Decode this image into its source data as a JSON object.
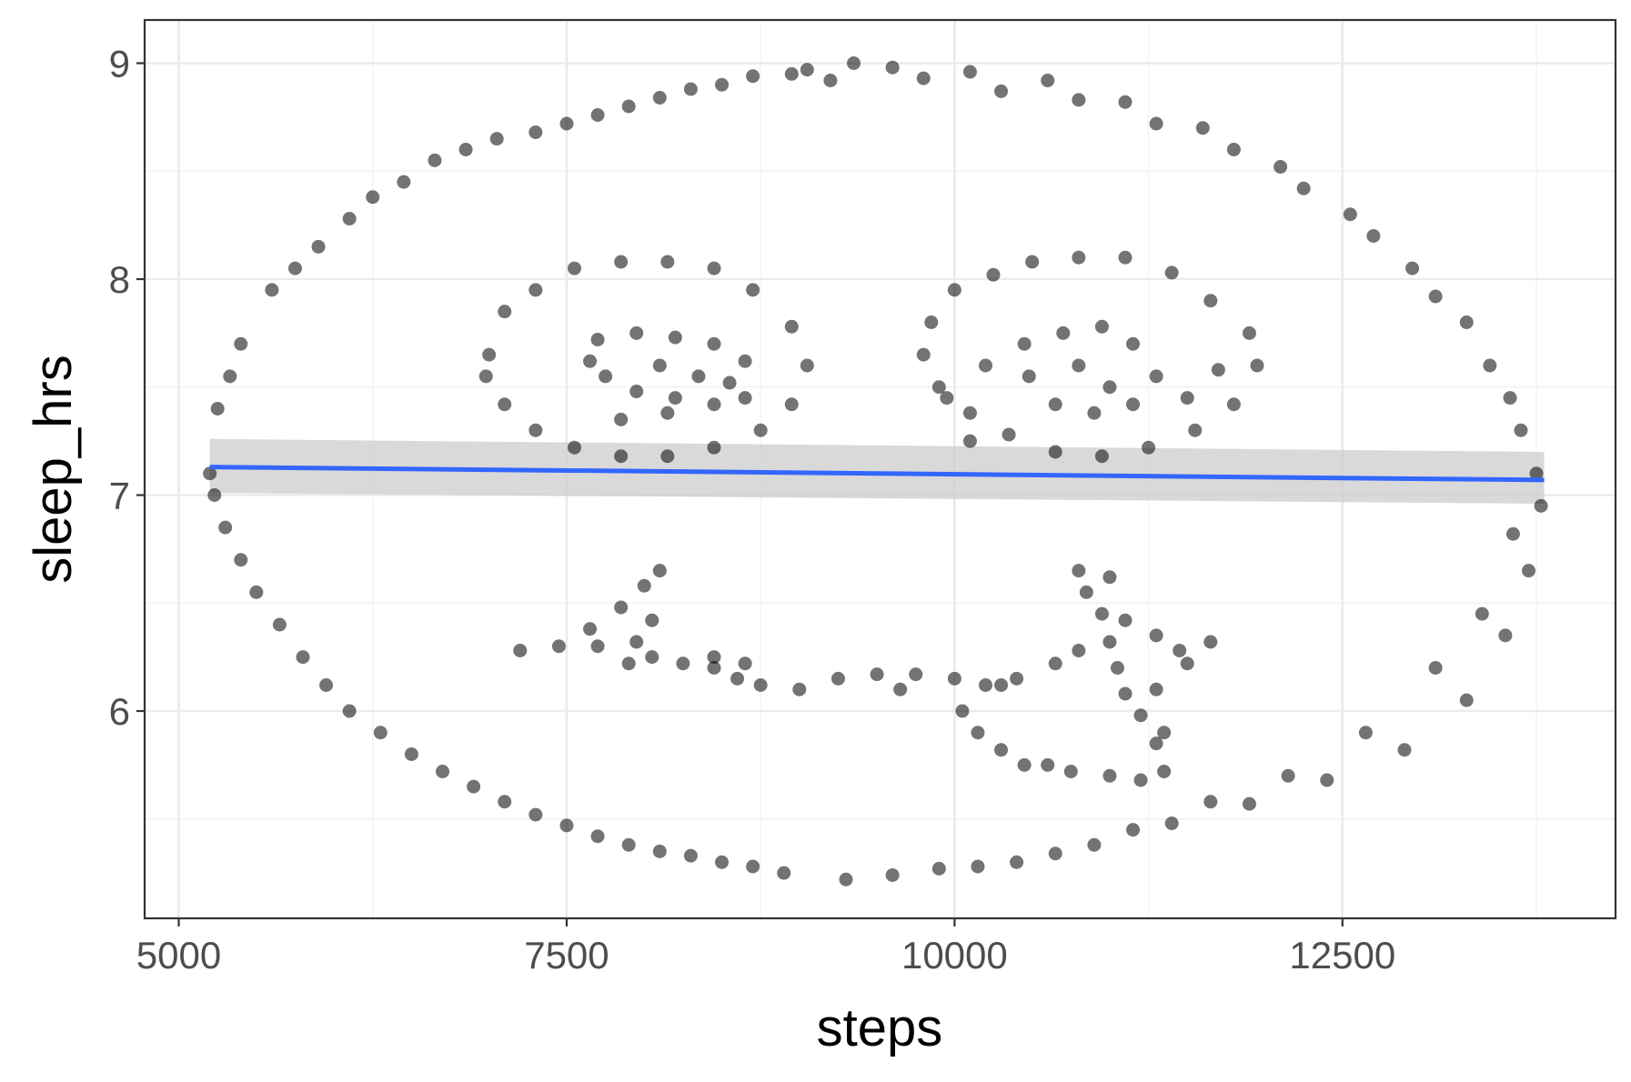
{
  "chart_data": {
    "type": "scatter",
    "title": "",
    "xlabel": "steps",
    "ylabel": "sleep_hrs",
    "xlim": [
      4780,
      14260
    ],
    "ylim": [
      5.04,
      9.2
    ],
    "x_ticks": [
      5000,
      7500,
      10000,
      12500
    ],
    "x_tick_labels": [
      "5000",
      "7500",
      "10000",
      "12500"
    ],
    "y_ticks": [
      6,
      7,
      8,
      9
    ],
    "y_tick_labels": [
      "6",
      "7",
      "8",
      "9"
    ],
    "grid": true,
    "legend": "none",
    "point_color": "#000000",
    "point_opacity": 0.55,
    "trend": {
      "method": "linear",
      "x": [
        5200,
        13800
      ],
      "y": [
        7.13,
        7.07
      ],
      "band_lower": [
        7.01,
        6.96
      ],
      "band_upper": [
        7.26,
        7.2
      ],
      "color": "#3366ff",
      "band_color": "#cccccc"
    },
    "series": [
      {
        "points": [
          [
            9350,
            9.0
          ],
          [
            9600,
            8.98
          ],
          [
            10100,
            8.96
          ],
          [
            10600,
            8.92
          ],
          [
            11100,
            8.82
          ],
          [
            11600,
            8.7
          ],
          [
            12100,
            8.52
          ],
          [
            12550,
            8.3
          ],
          [
            12950,
            8.05
          ],
          [
            13300,
            7.8
          ],
          [
            13580,
            7.45
          ],
          [
            13750,
            7.1
          ],
          [
            13780,
            6.95
          ],
          [
            13700,
            6.65
          ],
          [
            13550,
            6.35
          ],
          [
            13300,
            6.05
          ],
          [
            12900,
            5.82
          ],
          [
            12400,
            5.68
          ],
          [
            11900,
            5.57
          ],
          [
            11400,
            5.48
          ],
          [
            10900,
            5.38
          ],
          [
            10400,
            5.3
          ],
          [
            9900,
            5.27
          ],
          [
            9600,
            5.24
          ],
          [
            9300,
            5.22
          ],
          [
            8900,
            5.25
          ],
          [
            8500,
            5.3
          ],
          [
            8100,
            5.35
          ],
          [
            7700,
            5.42
          ],
          [
            7300,
            5.52
          ],
          [
            6900,
            5.65
          ],
          [
            6500,
            5.8
          ],
          [
            6100,
            6.0
          ],
          [
            5800,
            6.25
          ],
          [
            5500,
            6.55
          ],
          [
            5300,
            6.85
          ],
          [
            5200,
            7.1
          ],
          [
            5250,
            7.4
          ],
          [
            5400,
            7.7
          ],
          [
            5600,
            7.95
          ],
          [
            5900,
            8.15
          ],
          [
            6250,
            8.38
          ],
          [
            6650,
            8.55
          ],
          [
            7050,
            8.65
          ],
          [
            7500,
            8.72
          ],
          [
            7900,
            8.8
          ],
          [
            8300,
            8.88
          ],
          [
            8700,
            8.94
          ],
          [
            9050,
            8.97
          ],
          [
            9200,
            8.92
          ],
          [
            9800,
            8.93
          ],
          [
            10300,
            8.87
          ],
          [
            10800,
            8.83
          ],
          [
            11300,
            8.72
          ],
          [
            11800,
            8.6
          ],
          [
            12250,
            8.42
          ],
          [
            12700,
            8.2
          ],
          [
            13100,
            7.92
          ],
          [
            13450,
            7.6
          ],
          [
            13650,
            7.3
          ],
          [
            13600,
            6.82
          ],
          [
            13400,
            6.45
          ],
          [
            13100,
            6.2
          ],
          [
            12650,
            5.9
          ],
          [
            12150,
            5.7
          ],
          [
            11650,
            5.58
          ],
          [
            11150,
            5.45
          ],
          [
            10650,
            5.34
          ],
          [
            10150,
            5.28
          ],
          [
            8700,
            5.28
          ],
          [
            8300,
            5.33
          ],
          [
            7900,
            5.38
          ],
          [
            7500,
            5.47
          ],
          [
            7100,
            5.58
          ],
          [
            6700,
            5.72
          ],
          [
            6300,
            5.9
          ],
          [
            5950,
            6.12
          ],
          [
            5650,
            6.4
          ],
          [
            5400,
            6.7
          ],
          [
            5230,
            7.0
          ],
          [
            5330,
            7.55
          ],
          [
            5750,
            8.05
          ],
          [
            6100,
            8.28
          ],
          [
            6450,
            8.45
          ],
          [
            6850,
            8.6
          ],
          [
            7300,
            8.68
          ],
          [
            7700,
            8.76
          ],
          [
            8100,
            8.84
          ],
          [
            8500,
            8.9
          ],
          [
            8950,
            8.95
          ],
          [
            7000,
            7.65
          ],
          [
            7100,
            7.85
          ],
          [
            7300,
            7.95
          ],
          [
            7550,
            8.05
          ],
          [
            7850,
            8.08
          ],
          [
            8150,
            8.08
          ],
          [
            8450,
            8.05
          ],
          [
            8700,
            7.95
          ],
          [
            8950,
            7.78
          ],
          [
            9050,
            7.6
          ],
          [
            8950,
            7.42
          ],
          [
            8750,
            7.3
          ],
          [
            8450,
            7.22
          ],
          [
            8150,
            7.18
          ],
          [
            7850,
            7.18
          ],
          [
            7550,
            7.22
          ],
          [
            7300,
            7.3
          ],
          [
            7100,
            7.42
          ],
          [
            6980,
            7.55
          ],
          [
            7700,
            7.72
          ],
          [
            7950,
            7.75
          ],
          [
            8200,
            7.73
          ],
          [
            8450,
            7.7
          ],
          [
            8650,
            7.62
          ],
          [
            8650,
            7.45
          ],
          [
            8450,
            7.42
          ],
          [
            8200,
            7.45
          ],
          [
            7950,
            7.48
          ],
          [
            7750,
            7.55
          ],
          [
            7650,
            7.62
          ],
          [
            8100,
            7.6
          ],
          [
            8350,
            7.55
          ],
          [
            8550,
            7.52
          ],
          [
            8150,
            7.38
          ],
          [
            7850,
            7.35
          ],
          [
            9850,
            7.8
          ],
          [
            10000,
            7.95
          ],
          [
            10250,
            8.02
          ],
          [
            10500,
            8.08
          ],
          [
            10800,
            8.1
          ],
          [
            11100,
            8.1
          ],
          [
            11400,
            8.03
          ],
          [
            11650,
            7.9
          ],
          [
            11900,
            7.75
          ],
          [
            11950,
            7.6
          ],
          [
            11800,
            7.42
          ],
          [
            11550,
            7.3
          ],
          [
            11250,
            7.22
          ],
          [
            10950,
            7.18
          ],
          [
            10650,
            7.2
          ],
          [
            10350,
            7.28
          ],
          [
            10100,
            7.38
          ],
          [
            9900,
            7.5
          ],
          [
            9800,
            7.65
          ],
          [
            10450,
            7.7
          ],
          [
            10700,
            7.75
          ],
          [
            10950,
            7.78
          ],
          [
            11150,
            7.7
          ],
          [
            11300,
            7.55
          ],
          [
            11150,
            7.42
          ],
          [
            10900,
            7.38
          ],
          [
            10650,
            7.42
          ],
          [
            10480,
            7.55
          ],
          [
            10800,
            7.6
          ],
          [
            11000,
            7.5
          ],
          [
            11500,
            7.45
          ],
          [
            11700,
            7.58
          ],
          [
            10200,
            7.6
          ],
          [
            10100,
            7.25
          ],
          [
            9950,
            7.45
          ],
          [
            7200,
            6.28
          ],
          [
            7450,
            6.3
          ],
          [
            7650,
            6.38
          ],
          [
            7850,
            6.48
          ],
          [
            8000,
            6.58
          ],
          [
            8100,
            6.65
          ],
          [
            8050,
            6.42
          ],
          [
            7950,
            6.32
          ],
          [
            7900,
            6.22
          ],
          [
            8050,
            6.25
          ],
          [
            8250,
            6.22
          ],
          [
            8450,
            6.2
          ],
          [
            8600,
            6.15
          ],
          [
            8750,
            6.12
          ],
          [
            8650,
            6.22
          ],
          [
            8450,
            6.25
          ],
          [
            7700,
            6.3
          ],
          [
            9000,
            6.1
          ],
          [
            9250,
            6.15
          ],
          [
            9500,
            6.17
          ],
          [
            9750,
            6.17
          ],
          [
            10000,
            6.15
          ],
          [
            10200,
            6.12
          ],
          [
            10400,
            6.15
          ],
          [
            9650,
            6.1
          ],
          [
            10050,
            6.0
          ],
          [
            10150,
            5.9
          ],
          [
            10300,
            5.82
          ],
          [
            10450,
            5.75
          ],
          [
            10750,
            5.72
          ],
          [
            11000,
            5.7
          ],
          [
            11200,
            5.68
          ],
          [
            11350,
            5.72
          ],
          [
            11300,
            5.85
          ],
          [
            11200,
            5.98
          ],
          [
            11100,
            6.08
          ],
          [
            11050,
            6.2
          ],
          [
            11000,
            6.32
          ],
          [
            10950,
            6.45
          ],
          [
            10850,
            6.55
          ],
          [
            10800,
            6.65
          ],
          [
            11000,
            6.62
          ],
          [
            11100,
            6.42
          ],
          [
            11300,
            6.35
          ],
          [
            11450,
            6.28
          ],
          [
            11650,
            6.32
          ],
          [
            10800,
            6.28
          ],
          [
            10650,
            6.22
          ],
          [
            11500,
            6.22
          ],
          [
            11300,
            6.1
          ],
          [
            11350,
            5.9
          ],
          [
            10600,
            5.75
          ],
          [
            10300,
            6.12
          ]
        ]
      }
    ]
  }
}
